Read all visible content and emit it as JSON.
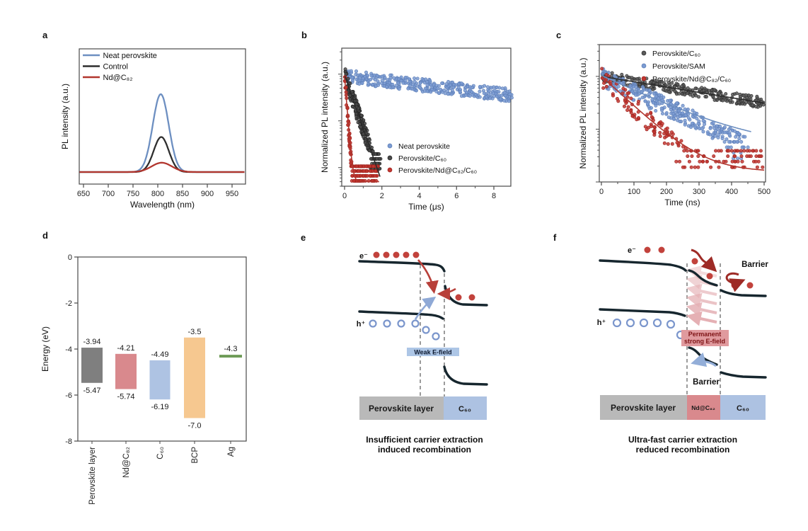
{
  "panel_labels": {
    "a": "a",
    "b": "b",
    "c": "c",
    "d": "d",
    "e": "e",
    "f": "f"
  },
  "chart_data": [
    {
      "panel": "a",
      "type": "line",
      "xlabel": "Wavelength (nm)",
      "ylabel": "PL intensity (a.u.)",
      "xlim": [
        641,
        977
      ],
      "xticks": [
        650,
        700,
        750,
        800,
        850,
        900,
        950
      ],
      "legend_position": "top-left",
      "series": [
        {
          "name": "Neat perovskite",
          "color": "#6d8fc1",
          "peak_nm": 806,
          "fwhm_nm": 38,
          "amplitude": 1.0
        },
        {
          "name": "Control",
          "color": "#2e2e2e",
          "peak_nm": 807,
          "fwhm_nm": 36,
          "amplitude": 0.45
        },
        {
          "name": "Nd@C₈₂",
          "color": "#b2362e",
          "peak_nm": 808,
          "fwhm_nm": 48,
          "amplitude": 0.12
        }
      ]
    },
    {
      "panel": "b",
      "type": "scatter",
      "xlabel": "Time (μs)",
      "ylabel": "Normalized PL intensity (a.u.)",
      "xlim": [
        -0.15,
        9.05
      ],
      "xticks": [
        0,
        2,
        4,
        6,
        8
      ],
      "xminor": [
        1,
        3,
        5,
        7,
        9
      ],
      "yscale": "log",
      "ylim": [
        0.004,
        3.6
      ],
      "legend_position": "inside-bottom-right",
      "series": [
        {
          "name": "Neat perovskite",
          "color": "#7b9bd2",
          "edge": "#5a7cb5",
          "amplitude": 0.9,
          "tau_us": 9.5,
          "t_range": [
            0.05,
            9.0
          ],
          "points": 380,
          "noise": 0.28
        },
        {
          "name": "Perovskite/C₆₀",
          "color": "#4a4a4a",
          "edge": "#1f1f1f",
          "amplitude": 0.95,
          "tau_us": 0.38,
          "t_range": [
            0.02,
            1.95
          ],
          "points": 250,
          "noise": 0.4,
          "floor": 0.0095,
          "fit_line": true,
          "fit_color": "#2b2b2b",
          "fit_floor": 0,
          "fit_tmax": 1.9
        },
        {
          "name": "Perovskite/Nd@C₈₂/C₆₀",
          "color": "#c23630",
          "edge": "#9b201c",
          "amplitude": 0.9,
          "tau_us": 0.085,
          "t_range": [
            0.01,
            1.8
          ],
          "points": 230,
          "noise": 0.35,
          "floor": 0.0052,
          "fit_line": true,
          "fit_color": "#b2362e",
          "fit_floor": 0.005,
          "fit_tmax": 1.85
        }
      ]
    },
    {
      "panel": "c",
      "type": "scatter",
      "xlabel": "Time (ns)",
      "ylabel": "Normalized PL intensity (a.u.)",
      "xlim": [
        -15,
        505
      ],
      "xticks": [
        0,
        100,
        200,
        300,
        400,
        500
      ],
      "xminor": [
        50,
        150,
        250,
        350,
        450
      ],
      "yscale": "log",
      "ylim": [
        0.01,
        4.0
      ],
      "legend_position": "inside-top",
      "series": [
        {
          "name": "Perovskite/C₆₀",
          "color": "#5a5a5a",
          "edge": "#2b2b2b",
          "amplitude": 1.0,
          "tau_ns": 430,
          "t_range": [
            1,
            500
          ],
          "points": 300,
          "noise": 0.2,
          "fit_line": true,
          "fit_color": "#2b2b2b",
          "fit_floor": 0,
          "fit_tmax": 500
        },
        {
          "name": "Perovskite/SAM",
          "color": "#7b9bd2",
          "edge": "#5a7cb5",
          "amplitude": 1.0,
          "tau_ns": 148,
          "t_range": [
            1,
            455
          ],
          "points": 320,
          "noise": 0.36,
          "floor": 0.028,
          "fit_line": true,
          "fit_color": "#6d8fc1",
          "fit_floor": 0.045,
          "fit_tmax": 460
        },
        {
          "name": "Perovskite/Nd@C₈₂/C₆₀",
          "color": "#c23630",
          "edge": "#9b201c",
          "amplitude": 1.0,
          "tau_ns": 75,
          "t_range": [
            1,
            500
          ],
          "points": 190,
          "noise": 0.4,
          "floor": 0.019,
          "fit_line": true,
          "fit_color": "#b2362e",
          "fit_floor": 0.0155,
          "fit_tmax": 500
        }
      ]
    },
    {
      "panel": "d",
      "type": "bar",
      "ylabel": "Energy (eV)",
      "ylim": [
        -8,
        0
      ],
      "yticks": [
        "0",
        "-2",
        "-4",
        "-6",
        "-8"
      ],
      "bars": [
        {
          "label": "Perovskite layer",
          "top_ev": -3.94,
          "bottom_ev": -5.47,
          "top_text": "-3.94",
          "bottom_text": "-5.47",
          "color": "#7f7f7f"
        },
        {
          "label": "Nd@C₈₂",
          "top_ev": -4.21,
          "bottom_ev": -5.74,
          "top_text": "-4.21",
          "bottom_text": "-5.74",
          "color": "#d9898d"
        },
        {
          "label": "C₆₀",
          "top_ev": -4.49,
          "bottom_ev": -6.19,
          "top_text": "-4.49",
          "bottom_text": "-6.19",
          "color": "#aec3e3"
        },
        {
          "label": "BCP",
          "top_ev": -3.5,
          "bottom_ev": -7.0,
          "top_text": "-3.5",
          "bottom_text": "-7.0",
          "color": "#f6c890"
        },
        {
          "label": "Ag",
          "top_ev": -4.25,
          "bottom_ev": -4.37,
          "top_text": "-4.3",
          "bottom_text": "",
          "color": "#6d9b56"
        }
      ]
    }
  ],
  "diagrams": {
    "e": {
      "electron_label": "e⁻",
      "hole_label": "h⁺",
      "field_label": "Weak E-field",
      "layers": [
        {
          "name": "Perovskite layer",
          "color": "#b9b9b9"
        },
        {
          "name": "C₆₀",
          "color": "#adc2e2"
        }
      ],
      "caption_line1": "Insufficient carrier extraction",
      "caption_line2": "induced recombination"
    },
    "f": {
      "electron_label": "e⁻",
      "hole_label": "h⁺",
      "barrier_top": "Barrier",
      "barrier_bottom": "Barrier",
      "field_label_line1": "Permanent",
      "field_label_line2": "strong E-field",
      "layers": [
        {
          "name": "Perovskite layer",
          "color": "#b9b9b9"
        },
        {
          "name": "Nd@C₈₂",
          "color": "#d9898d"
        },
        {
          "name": "C₆₀",
          "color": "#adc2e2"
        }
      ],
      "caption_line1": "Ultra-fast carrier extraction",
      "caption_line2": "reduced recombination"
    }
  }
}
